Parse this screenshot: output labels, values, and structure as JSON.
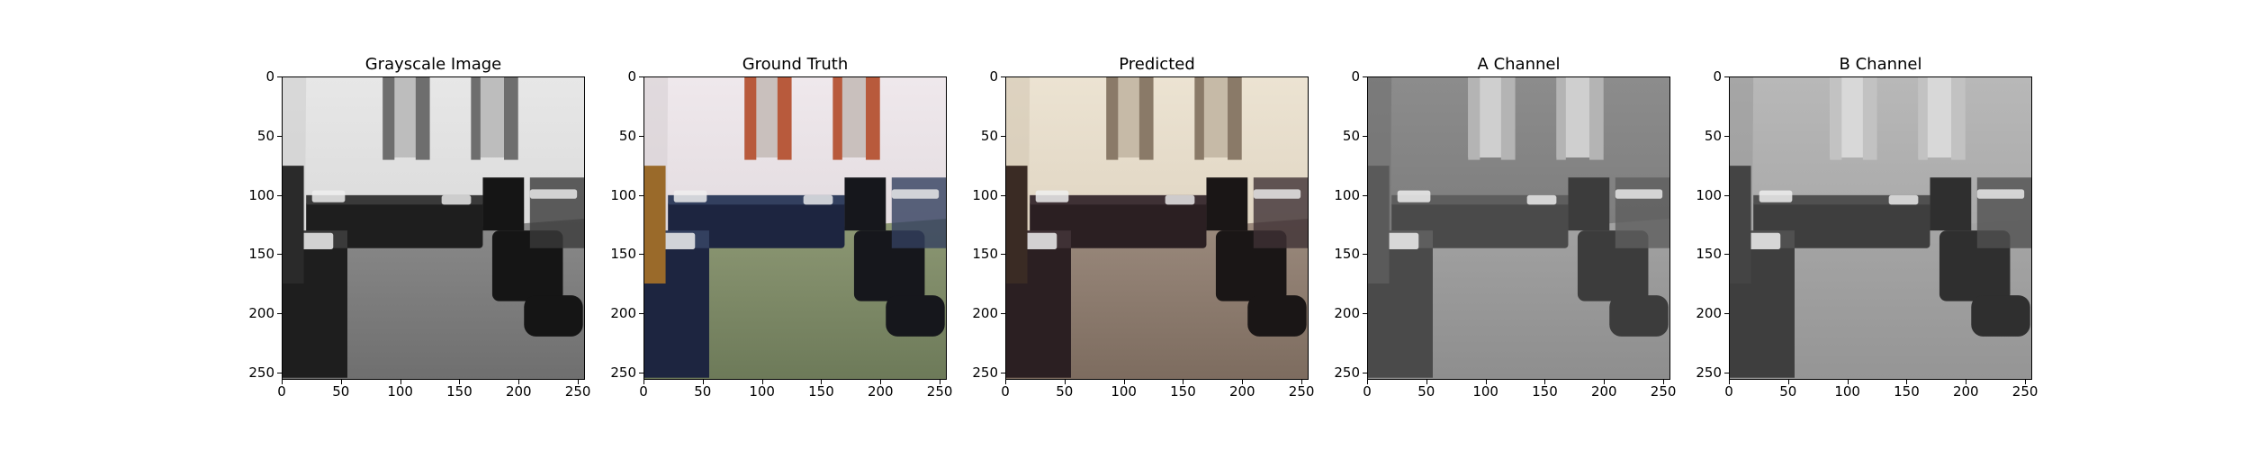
{
  "figure": {
    "panels": [
      {
        "title": "Grayscale Image",
        "variant": "gray"
      },
      {
        "title": "Ground Truth",
        "variant": "truth"
      },
      {
        "title": "Predicted",
        "variant": "pred"
      },
      {
        "title": "A Channel",
        "variant": "achan"
      },
      {
        "title": "B Channel",
        "variant": "bchan"
      }
    ],
    "y_ticks": [
      "0",
      "50",
      "100",
      "150",
      "200",
      "250"
    ],
    "x_ticks": [
      "0",
      "50",
      "100",
      "150",
      "200",
      "250"
    ],
    "y_tick_values": [
      0,
      50,
      100,
      150,
      200,
      250
    ],
    "x_tick_values": [
      0,
      50,
      100,
      150,
      200,
      250
    ],
    "image_extent": [
      0,
      256
    ]
  }
}
